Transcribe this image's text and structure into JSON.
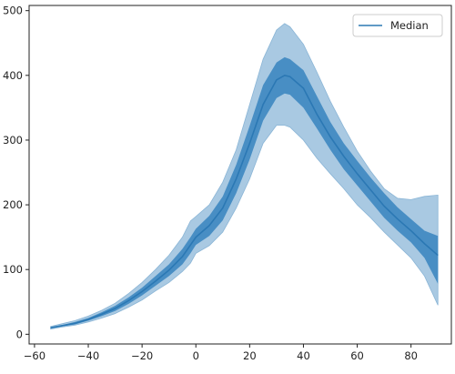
{
  "chart_data": {
    "type": "area",
    "title": "",
    "xlabel": "",
    "ylabel": "",
    "xlim": [
      -62,
      95
    ],
    "ylim": [
      -15,
      508
    ],
    "x_ticks": [
      -60,
      -40,
      -20,
      0,
      20,
      40,
      60,
      80
    ],
    "y_ticks": [
      0,
      100,
      200,
      300,
      400,
      500
    ],
    "grid": false,
    "legend": {
      "position": "top-right",
      "entries": [
        "Median"
      ]
    },
    "colors": {
      "median": "#2b78b4",
      "band_inner": "#3d87c1",
      "band_outer": "#a9c9e2",
      "axis": "#222222"
    },
    "x": [
      -54,
      -50,
      -45,
      -40,
      -35,
      -30,
      -25,
      -20,
      -15,
      -10,
      -5,
      -2,
      0,
      5,
      10,
      15,
      20,
      25,
      30,
      33,
      35,
      40,
      45,
      50,
      55,
      60,
      65,
      70,
      75,
      80,
      85,
      90
    ],
    "series": [
      {
        "name": "Median",
        "role": "median",
        "values": [
          10,
          13,
          17,
          23,
          31,
          40,
          52,
          66,
          82,
          99,
          120,
          138,
          150,
          168,
          195,
          240,
          295,
          355,
          393,
          400,
          398,
          380,
          340,
          305,
          275,
          248,
          223,
          198,
          178,
          160,
          140,
          122
        ]
      },
      {
        "role": "inner_lower",
        "values": [
          9,
          12,
          15,
          21,
          28,
          36,
          47,
          60,
          75,
          90,
          108,
          125,
          138,
          152,
          176,
          218,
          270,
          330,
          365,
          372,
          370,
          350,
          318,
          285,
          255,
          230,
          205,
          180,
          160,
          142,
          118,
          78
        ]
      },
      {
        "role": "inner_upper",
        "values": [
          11,
          14,
          19,
          25,
          34,
          44,
          57,
          72,
          90,
          108,
          132,
          150,
          163,
          183,
          213,
          262,
          322,
          385,
          420,
          428,
          425,
          408,
          368,
          328,
          295,
          268,
          242,
          218,
          196,
          178,
          160,
          152
        ]
      },
      {
        "role": "outer_lower",
        "values": [
          8,
          11,
          14,
          19,
          25,
          32,
          42,
          53,
          67,
          80,
          97,
          110,
          125,
          137,
          158,
          195,
          240,
          295,
          323,
          323,
          320,
          300,
          272,
          248,
          225,
          200,
          180,
          158,
          138,
          118,
          90,
          45
        ]
      },
      {
        "role": "outer_upper",
        "values": [
          12,
          16,
          21,
          28,
          37,
          48,
          63,
          80,
          100,
          122,
          150,
          175,
          182,
          200,
          235,
          285,
          355,
          425,
          470,
          480,
          475,
          448,
          405,
          360,
          320,
          283,
          252,
          225,
          210,
          208,
          213,
          215
        ]
      }
    ]
  }
}
